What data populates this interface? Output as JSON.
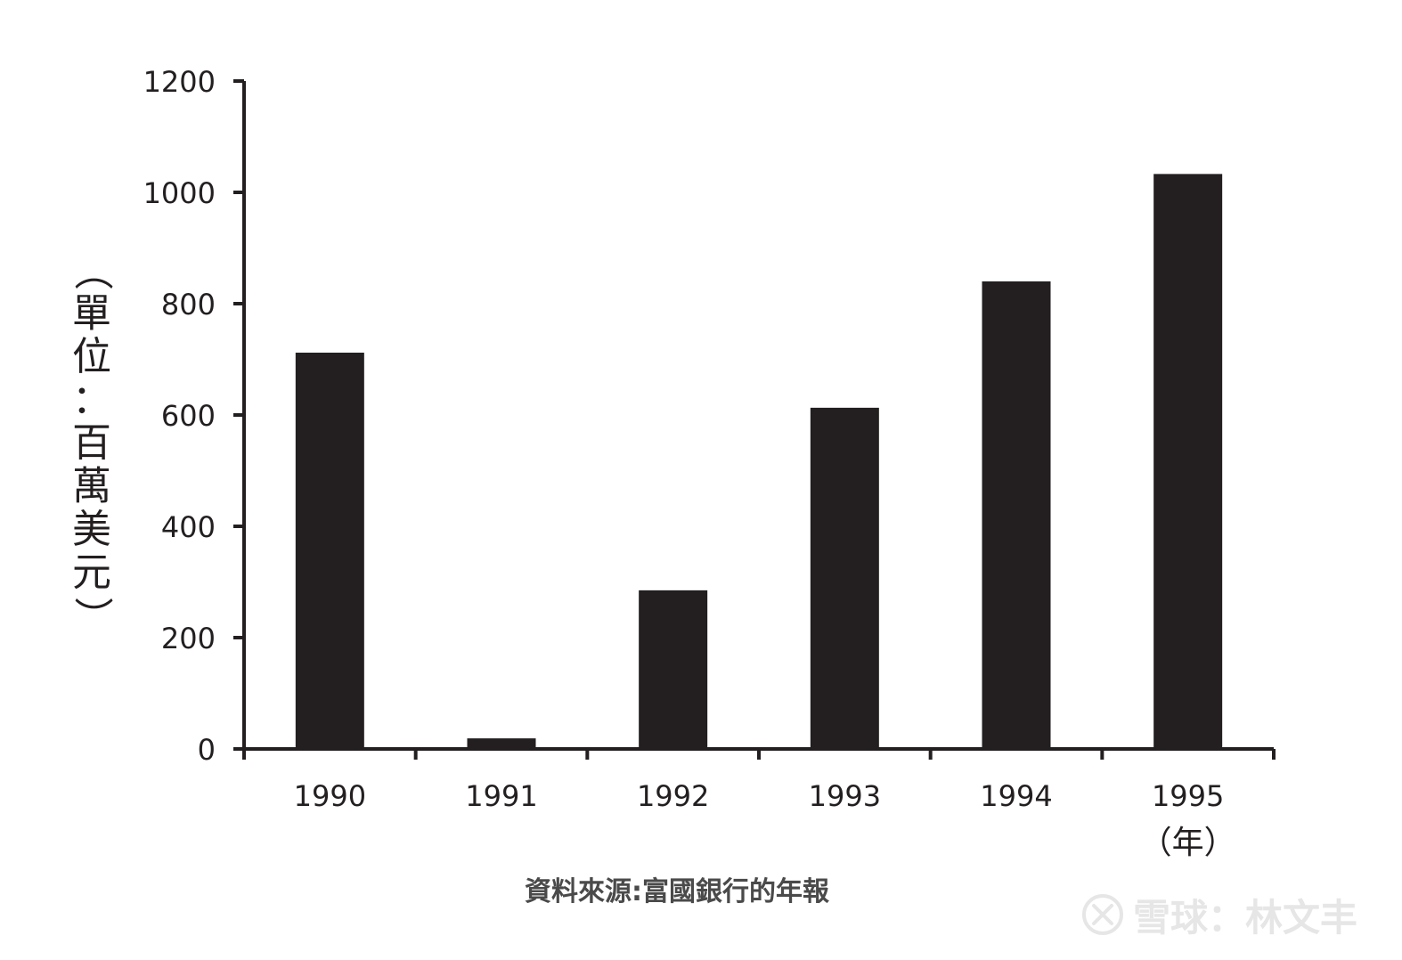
{
  "chart_data": {
    "type": "bar",
    "categories": [
      "1990",
      "1991",
      "1992",
      "1993",
      "1994",
      "1995"
    ],
    "values": [
      712,
      19,
      285,
      613,
      840,
      1033
    ],
    "ylabel": "（單位：百萬美元）",
    "xlabel": "（年）",
    "ylim": [
      0,
      1200
    ],
    "yticks": [
      0,
      200,
      400,
      600,
      800,
      1000,
      1200
    ],
    "bar_color": "#231f20",
    "grid": false,
    "legend": "none"
  },
  "source": "資料來源:富國銀行的年報",
  "watermark": {
    "text": "雪球：林文丰"
  }
}
